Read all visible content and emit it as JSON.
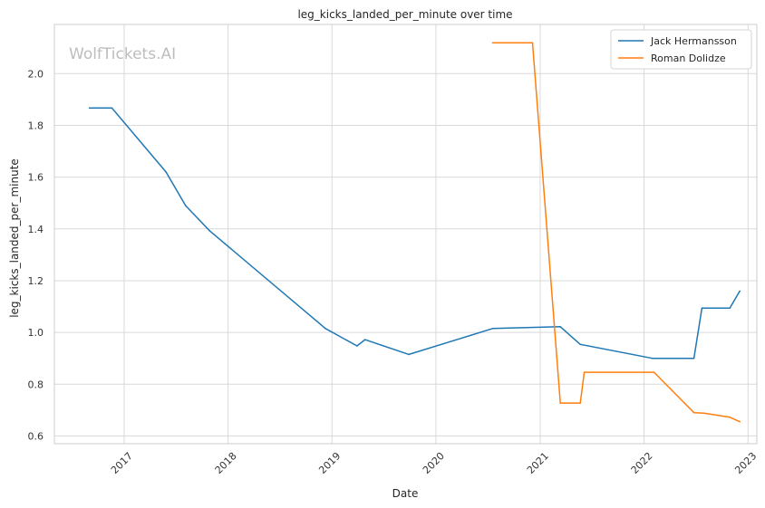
{
  "chart_data": {
    "type": "line",
    "title": "leg_kicks_landed_per_minute over time",
    "xlabel": "Date",
    "ylabel": "leg_kicks_landed_per_minute",
    "watermark": "WolfTickets.AI",
    "x_ticks": [
      "2017",
      "2018",
      "2019",
      "2020",
      "2021",
      "2022",
      "2023"
    ],
    "y_ticks": [
      "0.6",
      "0.8",
      "1.0",
      "1.2",
      "1.4",
      "1.6",
      "1.8",
      "2.0"
    ],
    "xlim": [
      "2016-05-01",
      "2023-02-01"
    ],
    "ylim": [
      0.57,
      2.19
    ],
    "grid": true,
    "legend_position": "top-right",
    "series": [
      {
        "name": "Jack Hermansson",
        "color": "#1f77b4",
        "points": [
          [
            "2016-09-01",
            1.867
          ],
          [
            "2016-11-19",
            1.867
          ],
          [
            "2017-05-28",
            1.62
          ],
          [
            "2017-08-05",
            1.49
          ],
          [
            "2017-10-28",
            1.393
          ],
          [
            "2018-12-09",
            1.015
          ],
          [
            "2019-03-30",
            0.948
          ],
          [
            "2019-04-27",
            0.972
          ],
          [
            "2019-09-28",
            0.915
          ],
          [
            "2020-07-18",
            1.015
          ],
          [
            "2021-03-13",
            1.022
          ],
          [
            "2021-05-22",
            0.954
          ],
          [
            "2022-01-30",
            0.9
          ],
          [
            "2022-06-25",
            0.9
          ],
          [
            "2022-07-23",
            1.094
          ],
          [
            "2022-10-29",
            1.094
          ],
          [
            "2022-12-03",
            1.16
          ]
        ]
      },
      {
        "name": "Roman Dolidze",
        "color": "#ff7f0e",
        "points": [
          [
            "2020-07-18",
            2.119
          ],
          [
            "2020-12-05",
            2.119
          ],
          [
            "2021-03-13",
            0.727
          ],
          [
            "2021-05-22",
            0.727
          ],
          [
            "2021-06-05",
            0.846
          ],
          [
            "2022-02-05",
            0.846
          ],
          [
            "2022-06-25",
            0.69
          ],
          [
            "2022-07-30",
            0.688
          ],
          [
            "2022-10-29",
            0.672
          ],
          [
            "2022-12-03",
            0.655
          ]
        ]
      }
    ]
  }
}
